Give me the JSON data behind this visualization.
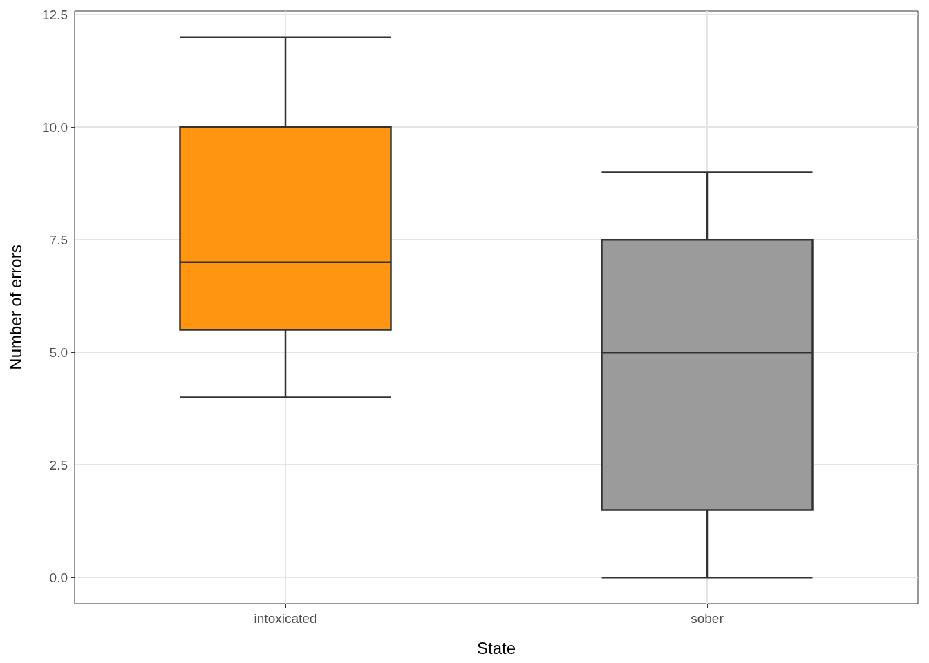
{
  "chart_data": {
    "type": "box",
    "xlabel": "State",
    "ylabel": "Number of errors",
    "categories": [
      "intoxicated",
      "sober"
    ],
    "boxes": [
      {
        "low": 4,
        "q1": 5.5,
        "median": 7,
        "q3": 10,
        "high": 12
      },
      {
        "low": 0,
        "q1": 1.5,
        "median": 5,
        "q3": 7.5,
        "high": 9
      }
    ],
    "colors": [
      "#ff9510",
      "#9b9b9b"
    ],
    "ylim": [
      -0.58,
      12.58
    ],
    "yticks": [
      {
        "value": 0,
        "label": "0.0"
      },
      2.5,
      {
        "value": 5,
        "label": "5.0"
      },
      7.5,
      {
        "value": 10,
        "label": "10.0"
      },
      12.5
    ],
    "grid": true
  }
}
